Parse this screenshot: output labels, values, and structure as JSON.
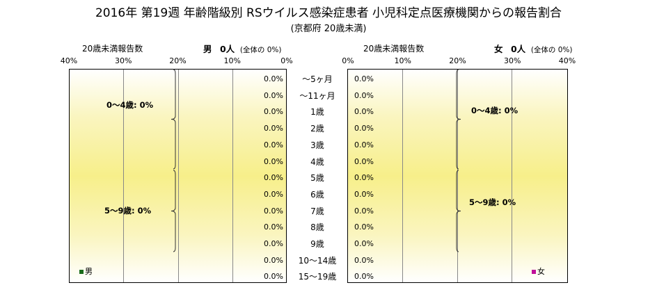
{
  "title": "2016年 第19週 年齢階級別 RSウイルス感染症患者 小児科定点医療機関からの報告割合",
  "subtitle": "(京都府 20歳未満)",
  "left_header": {
    "label": "20歳未満報告数",
    "sex": "男",
    "count": "0人",
    "note": "(全体の 0%)"
  },
  "right_header": {
    "label": "20歳未満報告数",
    "sex": "女",
    "count": "0人",
    "note": "(全体の 0%)"
  },
  "colors": {
    "male": "#1a6b1a",
    "female": "#c0109a",
    "band": "#f7ef8a"
  },
  "chart_data": {
    "type": "bar",
    "orientation": "horizontal-population-pyramid",
    "categories": [
      "～5ヶ月",
      "～11ヶ月",
      "1歳",
      "2歳",
      "3歳",
      "4歳",
      "5歳",
      "6歳",
      "7歳",
      "8歳",
      "9歳",
      "10～14歳",
      "15～19歳"
    ],
    "x_ticks_left": [
      "40%",
      "30%",
      "20%",
      "10%",
      "0%"
    ],
    "x_ticks_right": [
      "0%",
      "10%",
      "20%",
      "30%",
      "40%"
    ],
    "xlim": [
      0,
      40
    ],
    "series": [
      {
        "name": "男",
        "values": [
          0,
          0,
          0,
          0,
          0,
          0,
          0,
          0,
          0,
          0,
          0,
          0,
          0
        ],
        "labels": [
          "0.0%",
          "0.0%",
          "0.0%",
          "0.0%",
          "0.0%",
          "0.0%",
          "0.0%",
          "0.0%",
          "0.0%",
          "0.0%",
          "0.0%",
          "0.0%",
          "0.0%"
        ]
      },
      {
        "name": "女",
        "values": [
          0,
          0,
          0,
          0,
          0,
          0,
          0,
          0,
          0,
          0,
          0,
          0,
          0
        ],
        "labels": [
          "0.0%",
          "0.0%",
          "0.0%",
          "0.0%",
          "0.0%",
          "0.0%",
          "0.0%",
          "0.0%",
          "0.0%",
          "0.0%",
          "0.0%",
          "0.0%",
          "0.0%"
        ]
      }
    ],
    "groups": {
      "male": [
        {
          "label": "0～4歳: 0%"
        },
        {
          "label": "5～9歳: 0%"
        }
      ],
      "female": [
        {
          "label": "0～4歳: 0%"
        },
        {
          "label": "5～9歳: 0%"
        }
      ]
    },
    "legend": [
      "男",
      "女"
    ]
  }
}
